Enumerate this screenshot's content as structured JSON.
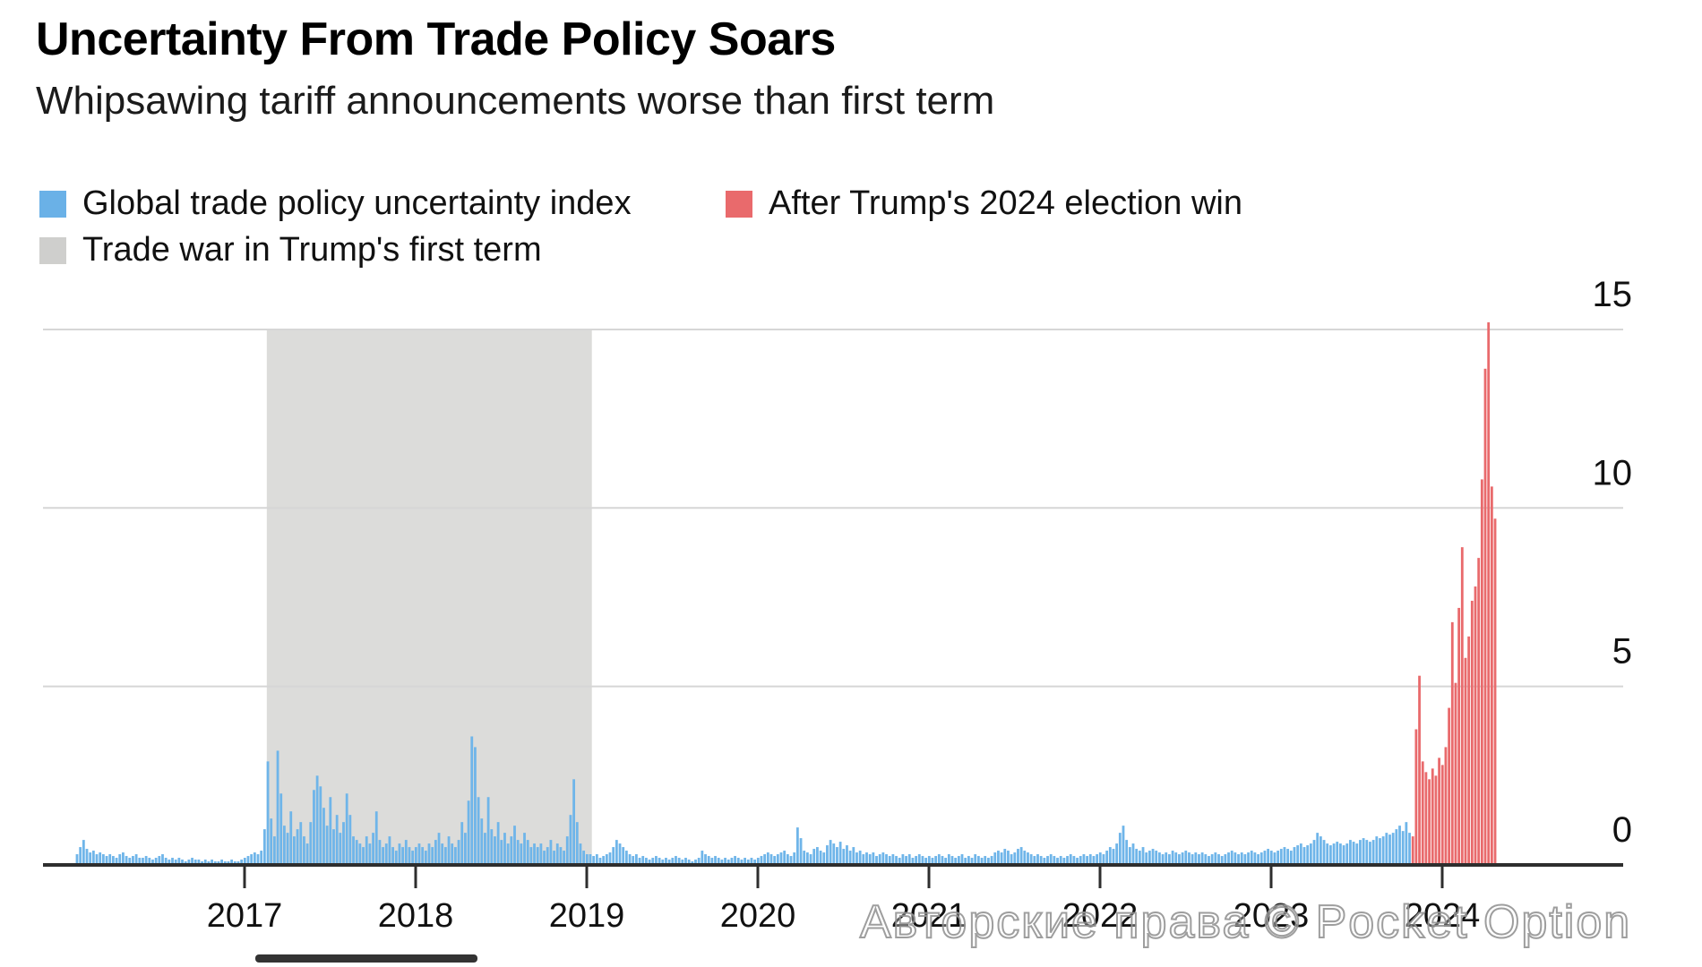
{
  "header": {
    "title": "Uncertainty From Trade Policy Soars",
    "subtitle": "Whipsawing tariff announcements worse than first term"
  },
  "legend": {
    "items": [
      {
        "label": "Global trade policy uncertainty index",
        "color": "#6AB1E7"
      },
      {
        "label": "After Trump's 2024 election win",
        "color": "#E96A6C"
      },
      {
        "label": "Trade war in Trump's first term",
        "color": "#CFCFCD"
      }
    ]
  },
  "colors": {
    "blue_bar": "#6FB5E9",
    "red_bar": "#E96A6C",
    "shaded_band": "#DCDCDA",
    "gridline": "#D6D6D6",
    "axis_line": "#2E2E2E",
    "axis_text": "#111111"
  },
  "watermark": {
    "text": "Авторские права © Pocket Option"
  },
  "chart_data": {
    "type": "bar",
    "title": "Uncertainty From Trade Policy Soars",
    "subtitle": "Whipsawing tariff announcements worse than first term",
    "xlabel": "",
    "ylabel": "",
    "ylim": [
      0,
      15.5
    ],
    "y_ticks": [
      0,
      5,
      10,
      15
    ],
    "y_tick_labels": [
      "0",
      "5",
      "10",
      "15"
    ],
    "y_axis_side": "right",
    "grid": "horizontal",
    "legend_position": "top-left",
    "x_tick_labels": [
      "2017",
      "2018",
      "2019",
      "2020",
      "2021",
      "2022",
      "2023",
      "2024"
    ],
    "x_ticks_mark_year_end": true,
    "x_start_year": 2017.0,
    "x_end_year": 2025.29,
    "bar_interval_years": 0.01923,
    "n_bars": 432,
    "series": [
      {
        "name": "Global trade policy uncertainty index",
        "color_key": "blue_bar",
        "indices": "0-405"
      },
      {
        "name": "After Trump's 2024 election win",
        "color_key": "red_bar",
        "indices": "406-431"
      }
    ],
    "red_start_index": 406,
    "shaded_region": {
      "label": "Trade war in Trump's first term",
      "from_year": 2018.13,
      "to_year": 2020.03,
      "color_key": "shaded_band"
    },
    "values": [
      0.3,
      0.5,
      0.7,
      0.45,
      0.35,
      0.4,
      0.3,
      0.35,
      0.3,
      0.25,
      0.3,
      0.25,
      0.2,
      0.3,
      0.35,
      0.25,
      0.2,
      0.25,
      0.3,
      0.2,
      0.2,
      0.25,
      0.2,
      0.15,
      0.2,
      0.25,
      0.3,
      0.2,
      0.15,
      0.2,
      0.15,
      0.2,
      0.15,
      0.1,
      0.15,
      0.2,
      0.15,
      0.15,
      0.1,
      0.15,
      0.1,
      0.15,
      0.1,
      0.1,
      0.15,
      0.1,
      0.1,
      0.15,
      0.1,
      0.1,
      0.15,
      0.2,
      0.25,
      0.3,
      0.35,
      0.3,
      0.4,
      1.0,
      2.9,
      1.3,
      0.8,
      3.2,
      2.0,
      1.1,
      0.9,
      1.5,
      0.8,
      1.0,
      1.2,
      0.8,
      0.6,
      1.2,
      2.1,
      2.5,
      2.2,
      1.6,
      1.1,
      1.9,
      1.0,
      1.4,
      0.9,
      1.2,
      2.0,
      1.4,
      0.8,
      0.7,
      0.6,
      0.5,
      0.8,
      0.6,
      0.9,
      1.5,
      0.7,
      0.5,
      0.6,
      0.8,
      0.5,
      0.4,
      0.6,
      0.5,
      0.7,
      0.5,
      0.4,
      0.5,
      0.6,
      0.5,
      0.4,
      0.6,
      0.5,
      0.7,
      0.9,
      0.6,
      0.5,
      0.8,
      0.6,
      0.5,
      0.7,
      1.2,
      0.9,
      1.8,
      3.6,
      3.3,
      1.9,
      1.3,
      0.9,
      1.9,
      1.0,
      0.8,
      1.2,
      0.7,
      0.9,
      0.6,
      0.8,
      1.1,
      0.7,
      0.6,
      0.9,
      0.7,
      0.5,
      0.6,
      0.5,
      0.6,
      0.4,
      0.5,
      0.7,
      0.4,
      0.6,
      0.5,
      0.4,
      0.8,
      1.4,
      2.4,
      1.2,
      0.6,
      0.4,
      0.3,
      0.3,
      0.25,
      0.3,
      0.2,
      0.25,
      0.3,
      0.35,
      0.5,
      0.7,
      0.6,
      0.5,
      0.4,
      0.3,
      0.25,
      0.3,
      0.2,
      0.25,
      0.2,
      0.15,
      0.2,
      0.25,
      0.2,
      0.15,
      0.2,
      0.15,
      0.2,
      0.25,
      0.2,
      0.15,
      0.2,
      0.15,
      0.1,
      0.15,
      0.2,
      0.4,
      0.3,
      0.25,
      0.2,
      0.25,
      0.2,
      0.15,
      0.2,
      0.15,
      0.2,
      0.25,
      0.2,
      0.15,
      0.2,
      0.15,
      0.2,
      0.15,
      0.2,
      0.25,
      0.3,
      0.35,
      0.3,
      0.25,
      0.3,
      0.35,
      0.4,
      0.3,
      0.25,
      0.35,
      1.05,
      0.75,
      0.4,
      0.35,
      0.3,
      0.45,
      0.5,
      0.4,
      0.35,
      0.55,
      0.7,
      0.6,
      0.5,
      0.65,
      0.45,
      0.55,
      0.4,
      0.5,
      0.35,
      0.4,
      0.3,
      0.35,
      0.3,
      0.35,
      0.25,
      0.3,
      0.35,
      0.3,
      0.25,
      0.3,
      0.25,
      0.2,
      0.3,
      0.25,
      0.3,
      0.2,
      0.25,
      0.3,
      0.25,
      0.2,
      0.25,
      0.2,
      0.25,
      0.3,
      0.25,
      0.2,
      0.3,
      0.25,
      0.2,
      0.25,
      0.3,
      0.2,
      0.25,
      0.2,
      0.3,
      0.25,
      0.2,
      0.25,
      0.2,
      0.25,
      0.35,
      0.4,
      0.35,
      0.45,
      0.4,
      0.3,
      0.35,
      0.45,
      0.5,
      0.4,
      0.35,
      0.3,
      0.25,
      0.3,
      0.25,
      0.2,
      0.25,
      0.3,
      0.25,
      0.2,
      0.25,
      0.2,
      0.25,
      0.3,
      0.25,
      0.2,
      0.25,
      0.3,
      0.25,
      0.3,
      0.25,
      0.3,
      0.35,
      0.3,
      0.4,
      0.5,
      0.45,
      0.6,
      0.9,
      1.1,
      0.7,
      0.5,
      0.6,
      0.45,
      0.4,
      0.5,
      0.35,
      0.4,
      0.45,
      0.4,
      0.35,
      0.3,
      0.35,
      0.3,
      0.4,
      0.35,
      0.3,
      0.35,
      0.4,
      0.35,
      0.3,
      0.35,
      0.3,
      0.35,
      0.3,
      0.25,
      0.3,
      0.35,
      0.3,
      0.25,
      0.3,
      0.35,
      0.4,
      0.35,
      0.3,
      0.35,
      0.3,
      0.35,
      0.4,
      0.35,
      0.3,
      0.35,
      0.4,
      0.45,
      0.4,
      0.35,
      0.4,
      0.45,
      0.5,
      0.45,
      0.4,
      0.5,
      0.55,
      0.6,
      0.5,
      0.55,
      0.6,
      0.7,
      0.9,
      0.8,
      0.7,
      0.6,
      0.55,
      0.6,
      0.65,
      0.6,
      0.55,
      0.6,
      0.7,
      0.65,
      0.6,
      0.7,
      0.75,
      0.7,
      0.65,
      0.7,
      0.8,
      0.75,
      0.8,
      0.9,
      0.85,
      0.9,
      1.0,
      1.1,
      0.95,
      1.2,
      0.9,
      0.8,
      3.8,
      5.3,
      2.9,
      2.6,
      2.4,
      2.7,
      2.5,
      3.0,
      2.8,
      3.3,
      4.4,
      6.8,
      5.1,
      7.2,
      8.9,
      5.8,
      6.4,
      7.4,
      7.8,
      8.6,
      10.8,
      13.9,
      15.2,
      10.6,
      9.7
    ]
  }
}
